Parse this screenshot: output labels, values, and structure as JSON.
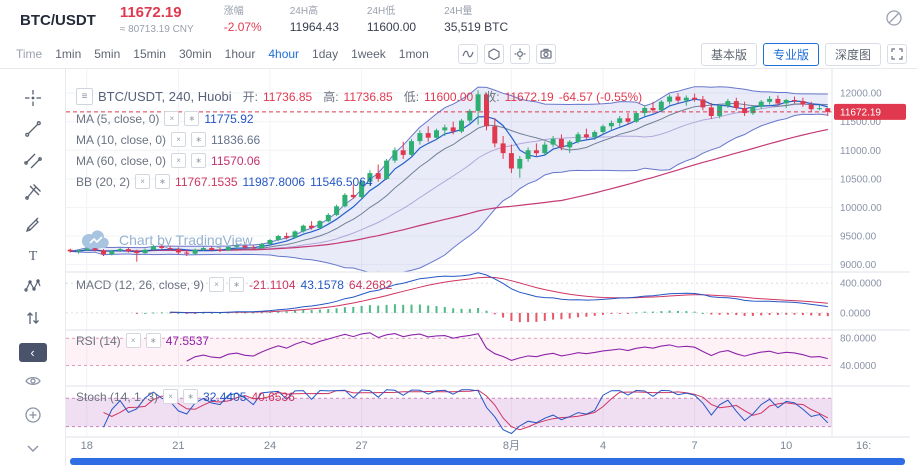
{
  "header": {
    "pair": "BTC/USDT",
    "price": "11672.19",
    "price_cny": "≈ 80713.19 CNY",
    "stats": [
      {
        "label": "涨幅",
        "value": "-2.07%"
      },
      {
        "label": "24H高",
        "value": "11964.43"
      },
      {
        "label": "24H低",
        "value": "11600.00"
      },
      {
        "label": "24H量",
        "value": "35,519 BTC"
      }
    ]
  },
  "toolbar": {
    "intervals": [
      {
        "label": "Time",
        "active": false
      },
      {
        "label": "1min",
        "active": false
      },
      {
        "label": "5min",
        "active": false
      },
      {
        "label": "15min",
        "active": false
      },
      {
        "label": "30min",
        "active": false
      },
      {
        "label": "1hour",
        "active": false
      },
      {
        "label": "4hour",
        "active": true
      },
      {
        "label": "1day",
        "active": false
      },
      {
        "label": "1week",
        "active": false
      },
      {
        "label": "1mon",
        "active": false
      }
    ],
    "view_tabs": [
      {
        "label": "基本版",
        "active": false
      },
      {
        "label": "专业版",
        "active": true
      },
      {
        "label": "深度图",
        "active": false
      }
    ]
  },
  "sidebar": {
    "tools": [
      "crosshair",
      "trend-line",
      "parallel-channel",
      "pitchfork",
      "brush",
      "text",
      "xabcd-pattern",
      "arrows",
      "collapse",
      "eye",
      "zoom-in",
      "chevron-down"
    ]
  },
  "icons": {
    "menu": "≡",
    "close": "×",
    "gear": "∗",
    "back": "‹"
  },
  "legend": {
    "symbol": "BTC/USDT, 240, Huobi",
    "ohlc": {
      "o_label": "开:",
      "o": "11736.85",
      "h_label": "高:",
      "h": "11736.85",
      "l_label": "低:",
      "l": "11600.00",
      "c_label": "收:",
      "c": "11672.19",
      "change": "-64.57 (-0.55%)"
    },
    "ma5": {
      "label": "MA (5, close, 0)",
      "value": "11775.92"
    },
    "ma10": {
      "label": "MA (10, close, 0)",
      "value": "11836.66"
    },
    "ma60": {
      "label": "MA (60, close, 0)",
      "value": "11570.06"
    },
    "bb": {
      "label": "BB (20, 2)",
      "v1": "11767.1535",
      "v2": "11987.8006",
      "v3": "11546.5064"
    },
    "macd": {
      "label": "MACD (12, 26, close, 9)",
      "v1": "-21.1104",
      "v2": "43.1578",
      "v3": "64.2682"
    },
    "rsi": {
      "label": "RSI (14)",
      "value": "47.5537"
    },
    "stoch": {
      "label": "Stoch (14, 1, 3)",
      "v1": "32.4405",
      "v2": "40.6536"
    }
  },
  "watermark": {
    "text": "Chart by TradingView"
  },
  "chart_data": {
    "type": "candlestick",
    "symbol": "BTC/USDT",
    "interval": "240",
    "exchange": "Huobi",
    "colors": {
      "up": "#2fae73",
      "down": "#e0394f",
      "ma5": "#1a57c9",
      "ma10": "#64748b",
      "ma60": "#c2306e",
      "bb": "#5868c6",
      "bb_basis": "#8f7cc9",
      "bb_fill": "rgba(88,104,198,0.13)",
      "dif": "#2457c5",
      "dea": "#cf3560",
      "rsi": "#8e24aa",
      "k": "#2457c5",
      "d": "#cf3560",
      "grid": "#f2f3f7",
      "divider": "#dfe2e9",
      "axis_text": "#8a93a6",
      "price_line": "#e0394f",
      "accent": "#1e6fd9"
    },
    "axis": {
      "main": [
        {
          "text": "12000.00",
          "v": 12000
        },
        {
          "text": "11500.00",
          "v": 11500
        },
        {
          "text": "11000.00",
          "v": 11000
        },
        {
          "text": "10500.00",
          "v": 10500
        },
        {
          "text": "10000.00",
          "v": 10000
        },
        {
          "text": "9500.00",
          "v": 9500
        },
        {
          "text": "9000.00",
          "v": 9000
        }
      ],
      "macd": [
        {
          "text": "400.0000",
          "v": 400
        },
        {
          "text": "0.0000",
          "v": 0
        }
      ],
      "rsi": [
        {
          "text": "80.0000",
          "v": 80
        },
        {
          "text": "40.0000",
          "v": 40
        }
      ],
      "price_tag": "11672.19",
      "price": 11672.19,
      "corner": "16:"
    },
    "x_labels": [
      {
        "text": "18",
        "i": 2
      },
      {
        "text": "21",
        "i": 13
      },
      {
        "text": "24",
        "i": 24
      },
      {
        "text": "27",
        "i": 35
      },
      {
        "text": "8月",
        "i": 53
      },
      {
        "text": "4",
        "i": 64
      },
      {
        "text": "7",
        "i": 75
      },
      {
        "text": "10",
        "i": 86
      }
    ],
    "candles": [
      [
        9260,
        9280,
        9210,
        9230
      ],
      [
        9230,
        9260,
        9190,
        9250
      ],
      [
        9250,
        9300,
        9240,
        9280
      ],
      [
        9280,
        9310,
        9230,
        9250
      ],
      [
        9250,
        9270,
        9150,
        9180
      ],
      [
        9180,
        9250,
        9160,
        9240
      ],
      [
        9240,
        9290,
        9220,
        9270
      ],
      [
        9270,
        9300,
        9210,
        9230
      ],
      [
        9230,
        9260,
        9050,
        9200
      ],
      [
        9200,
        9280,
        9190,
        9260
      ],
      [
        9260,
        9340,
        9250,
        9320
      ],
      [
        9320,
        9350,
        9260,
        9290
      ],
      [
        9290,
        9330,
        9250,
        9270
      ],
      [
        9270,
        9300,
        9180,
        9210
      ],
      [
        9210,
        9260,
        9150,
        9190
      ],
      [
        9190,
        9280,
        9170,
        9260
      ],
      [
        9260,
        9310,
        9240,
        9290
      ],
      [
        9290,
        9320,
        9230,
        9260
      ],
      [
        9260,
        9300,
        9220,
        9250
      ],
      [
        9250,
        9330,
        9240,
        9310
      ],
      [
        9310,
        9360,
        9280,
        9330
      ],
      [
        9330,
        9360,
        9270,
        9300
      ],
      [
        9300,
        9340,
        9260,
        9290
      ],
      [
        9290,
        9380,
        9280,
        9360
      ],
      [
        9360,
        9450,
        9340,
        9430
      ],
      [
        9430,
        9520,
        9410,
        9500
      ],
      [
        9500,
        9560,
        9440,
        9470
      ],
      [
        9470,
        9600,
        9460,
        9580
      ],
      [
        9580,
        9700,
        9560,
        9680
      ],
      [
        9680,
        9760,
        9610,
        9640
      ],
      [
        9640,
        9780,
        9630,
        9760
      ],
      [
        9760,
        9900,
        9740,
        9870
      ],
      [
        9870,
        10050,
        9850,
        10020
      ],
      [
        10020,
        10250,
        10000,
        10220
      ],
      [
        10220,
        10400,
        10150,
        10180
      ],
      [
        10180,
        10480,
        10160,
        10450
      ],
      [
        10450,
        10650,
        10380,
        10600
      ],
      [
        10600,
        10750,
        10450,
        10500
      ],
      [
        10500,
        10850,
        10480,
        10820
      ],
      [
        10820,
        11050,
        10780,
        11000
      ],
      [
        11000,
        11150,
        10850,
        10920
      ],
      [
        10920,
        11200,
        10900,
        11160
      ],
      [
        11160,
        11350,
        11100,
        11300
      ],
      [
        11300,
        11420,
        11150,
        11220
      ],
      [
        11220,
        11380,
        11180,
        11350
      ],
      [
        11350,
        11450,
        11250,
        11400
      ],
      [
        11400,
        11500,
        11280,
        11330
      ],
      [
        11330,
        11550,
        11300,
        11520
      ],
      [
        11520,
        11720,
        11480,
        11690
      ],
      [
        11690,
        12050,
        11450,
        11980
      ],
      [
        11980,
        12000,
        11350,
        11420
      ],
      [
        11420,
        11560,
        11050,
        11120
      ],
      [
        11120,
        11250,
        10850,
        10950
      ],
      [
        10950,
        11100,
        10600,
        10680
      ],
      [
        10680,
        10900,
        10520,
        10850
      ],
      [
        10850,
        11050,
        10800,
        11000
      ],
      [
        11000,
        11120,
        10900,
        10950
      ],
      [
        10950,
        11150,
        10920,
        11100
      ],
      [
        11100,
        11250,
        11050,
        11200
      ],
      [
        11200,
        11280,
        11000,
        11050
      ],
      [
        11050,
        11180,
        10950,
        11150
      ],
      [
        11150,
        11320,
        11120,
        11280
      ],
      [
        11280,
        11380,
        11200,
        11230
      ],
      [
        11230,
        11350,
        11180,
        11320
      ],
      [
        11320,
        11450,
        11280,
        11420
      ],
      [
        11420,
        11520,
        11350,
        11480
      ],
      [
        11480,
        11600,
        11420,
        11560
      ],
      [
        11560,
        11650,
        11450,
        11500
      ],
      [
        11500,
        11680,
        11480,
        11650
      ],
      [
        11650,
        11780,
        11600,
        11740
      ],
      [
        11740,
        11850,
        11650,
        11700
      ],
      [
        11700,
        11880,
        11680,
        11850
      ],
      [
        11850,
        11980,
        11800,
        11940
      ],
      [
        11940,
        12000,
        11820,
        11870
      ],
      [
        11870,
        11960,
        11780,
        11920
      ],
      [
        11920,
        11990,
        11850,
        11890
      ],
      [
        11890,
        11950,
        11700,
        11750
      ],
      [
        11750,
        11830,
        11550,
        11600
      ],
      [
        11600,
        11800,
        11560,
        11780
      ],
      [
        11780,
        11900,
        11740,
        11860
      ],
      [
        11860,
        11920,
        11700,
        11740
      ],
      [
        11740,
        11850,
        11600,
        11650
      ],
      [
        11650,
        11780,
        11620,
        11760
      ],
      [
        11760,
        11880,
        11720,
        11850
      ],
      [
        11850,
        11950,
        11800,
        11900
      ],
      [
        11900,
        11960,
        11780,
        11820
      ],
      [
        11820,
        11900,
        11740,
        11880
      ],
      [
        11880,
        11940,
        11820,
        11860
      ],
      [
        11860,
        11920,
        11760,
        11800
      ],
      [
        11800,
        11850,
        11680,
        11720
      ],
      [
        11720,
        11800,
        11700,
        11737
      ],
      [
        11736.85,
        11736.85,
        11600,
        11672.19
      ]
    ]
  }
}
